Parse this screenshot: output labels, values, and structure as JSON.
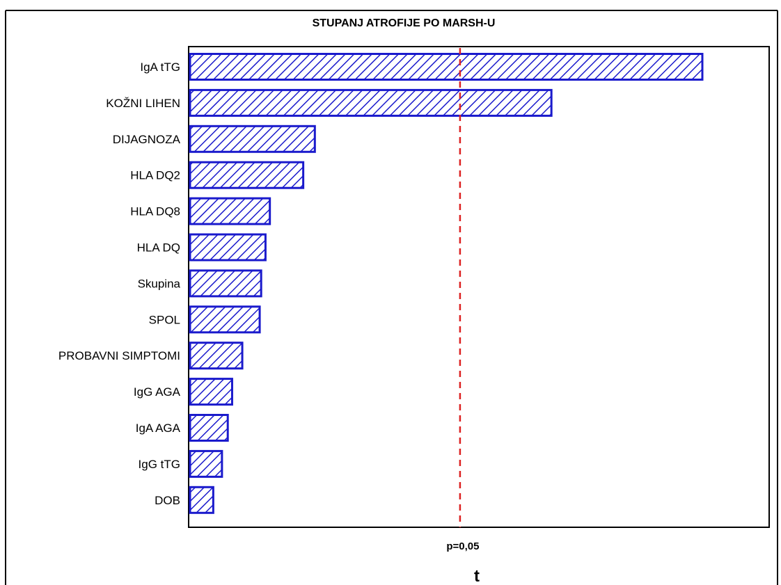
{
  "chart_data": {
    "type": "bar",
    "orientation": "horizontal",
    "title": "STUPANJ ATROFIJE PO MARSH-U",
    "xlabel": "t",
    "ylabel": "",
    "categories": [
      "IgA tTG",
      "KOŽNI LIHEN",
      "DIJAGNOZA",
      "HLA DQ2",
      "HLA DQ8",
      "HLA DQ",
      "Skupina",
      "SPOL",
      "PROBAVNI SIMPTOMI",
      "IgG AGA",
      "IgA AGA",
      "IgG tTG",
      "DOB"
    ],
    "values": [
      3.53,
      2.49,
      0.86,
      0.78,
      0.55,
      0.52,
      0.49,
      0.48,
      0.36,
      0.29,
      0.26,
      0.22,
      0.16
    ],
    "xlim": [
      0,
      4.0
    ],
    "reference_line": {
      "value": 1.87,
      "label": "p=0,05",
      "color": "#dd2222",
      "style": "dashed"
    },
    "bar_color": "#1a1acc",
    "hatch": "diagonal",
    "grid": false,
    "legend": "none"
  }
}
